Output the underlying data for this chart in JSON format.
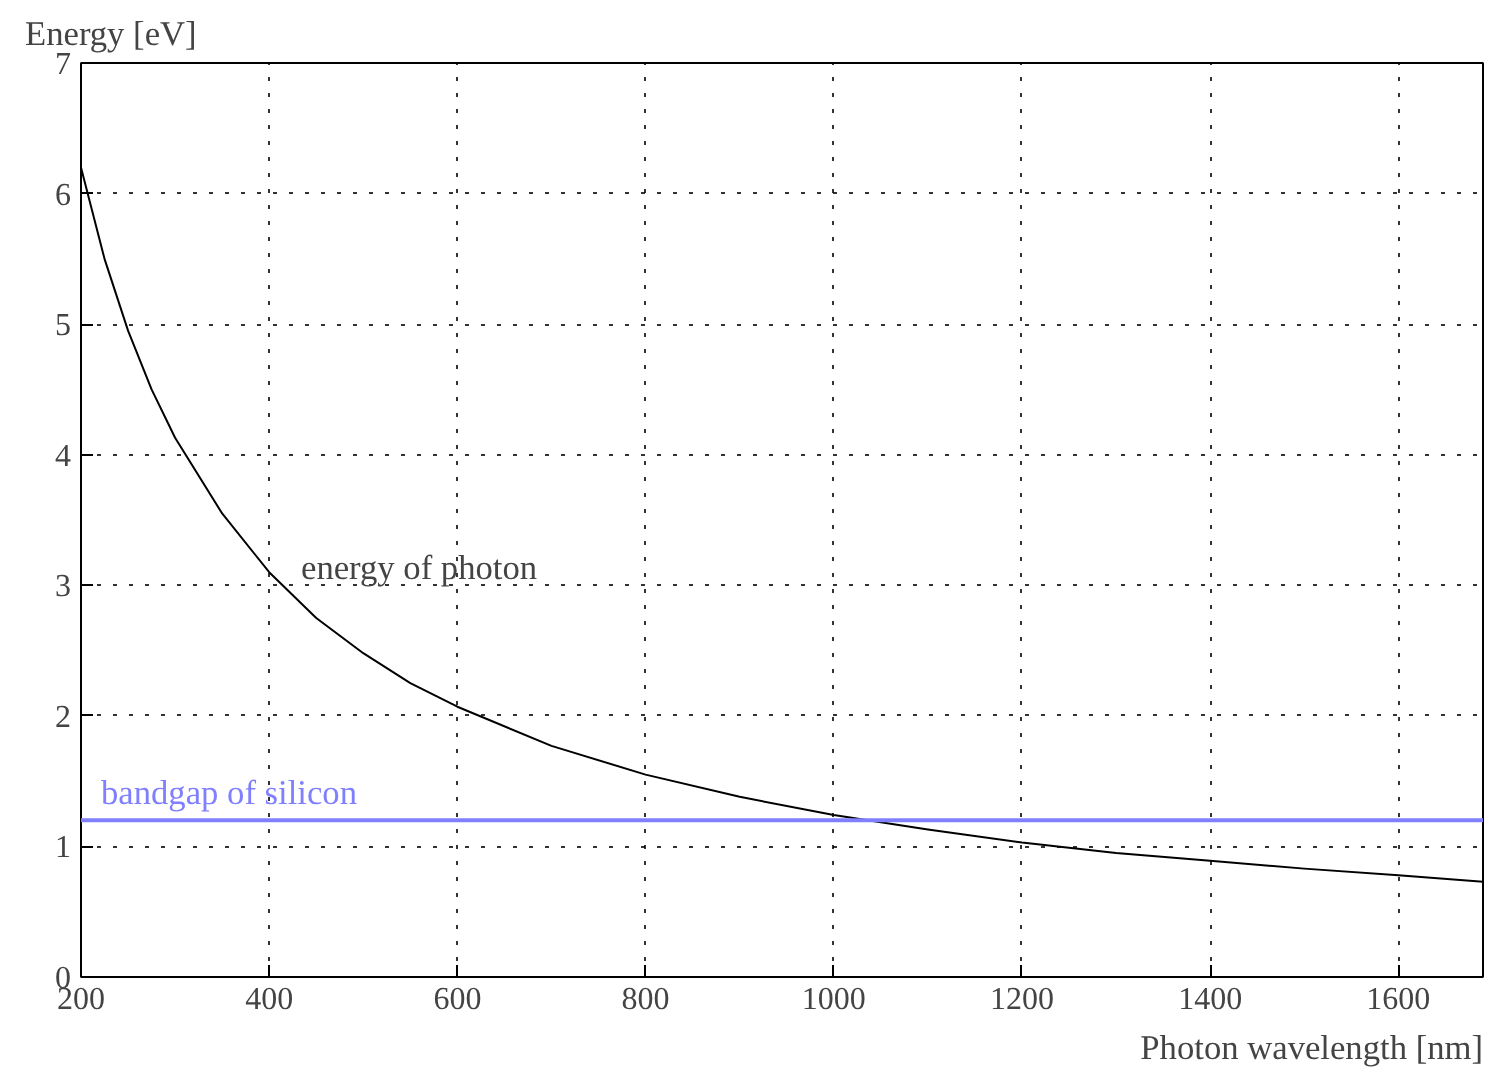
{
  "chart_data": {
    "type": "line",
    "xlabel": "Photon wavelength [nm]",
    "ylabel": "Energy [eV]",
    "x": [
      200,
      225,
      250,
      275,
      300,
      350,
      400,
      450,
      500,
      550,
      600,
      700,
      800,
      900,
      1000,
      1100,
      1200,
      1300,
      1400,
      1500,
      1600,
      1690
    ],
    "series": [
      {
        "color": "#000000",
        "values": [
          6.2,
          5.5,
          4.95,
          4.5,
          4.13,
          3.55,
          3.1,
          2.75,
          2.48,
          2.25,
          2.07,
          1.77,
          1.55,
          1.38,
          1.24,
          1.13,
          1.03,
          0.95,
          0.89,
          0.83,
          0.78,
          0.73
        ]
      }
    ],
    "xlim": [
      200,
      1690
    ],
    "ylim": [
      0,
      7
    ],
    "xticks": [
      200,
      400,
      600,
      800,
      1000,
      1200,
      1400,
      1600
    ],
    "yticks": [
      0,
      1,
      2,
      3,
      4,
      5,
      6,
      7
    ],
    "grid": true,
    "line_style": "solid",
    "ref_lines": [
      {
        "axis": "y",
        "value": 1.2,
        "label": "bandgap of silicon",
        "color": "#8080ff"
      }
    ],
    "annotations": [
      "energy of photon"
    ]
  }
}
